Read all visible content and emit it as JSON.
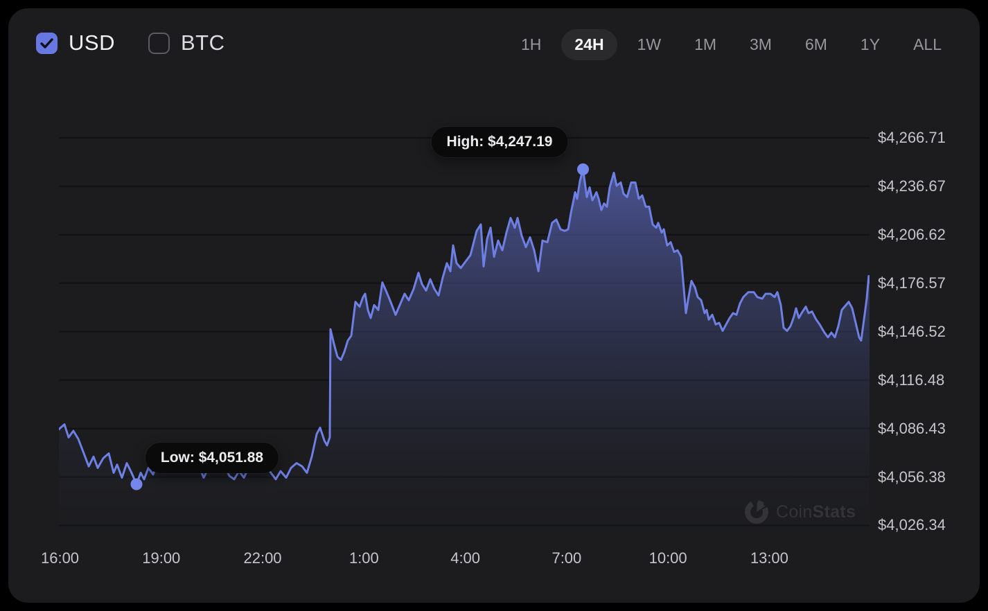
{
  "header": {
    "currency_toggles": [
      {
        "label": "USD",
        "checked": true
      },
      {
        "label": "BTC",
        "checked": false
      }
    ],
    "range_tabs": [
      {
        "label": "1H",
        "active": false
      },
      {
        "label": "24H",
        "active": true
      },
      {
        "label": "1W",
        "active": false
      },
      {
        "label": "1M",
        "active": false
      },
      {
        "label": "3M",
        "active": false
      },
      {
        "label": "6M",
        "active": false
      },
      {
        "label": "1Y",
        "active": false
      },
      {
        "label": "ALL",
        "active": false
      }
    ]
  },
  "watermark": {
    "brand_prefix": "Coin",
    "brand_suffix": "Stats"
  },
  "colors": {
    "accent": "#6878e2",
    "line": "#6e80e4",
    "card_bg": "#1c1c1e",
    "page_bg": "#000000",
    "tooltip_bg": "#0a0a0b"
  },
  "chart_data": {
    "type": "area",
    "title": "24H price chart (USD)",
    "legend": [],
    "grid": "horizontal",
    "x_axis": {
      "ticks": [
        {
          "label": "16:00",
          "t": 0.0013
        },
        {
          "label": "19:00",
          "t": 0.1263
        },
        {
          "label": "22:00",
          "t": 0.2513
        },
        {
          "label": "1:00",
          "t": 0.3764
        },
        {
          "label": "4:00",
          "t": 0.5014
        },
        {
          "label": "7:00",
          "t": 0.6264
        },
        {
          "label": "10:00",
          "t": 0.7514
        },
        {
          "label": "13:00",
          "t": 0.8764
        }
      ]
    },
    "y_axis": {
      "price_at_top": 4272.72,
      "price_at_bottom": 4017.1,
      "ticks": [
        {
          "label": "$4,266.71",
          "value": 4266.71
        },
        {
          "label": "$4,236.67",
          "value": 4236.67
        },
        {
          "label": "$4,206.62",
          "value": 4206.62
        },
        {
          "label": "$4,176.57",
          "value": 4176.57
        },
        {
          "label": "$4,146.52",
          "value": 4146.52
        },
        {
          "label": "$4,116.48",
          "value": 4116.48
        },
        {
          "label": "$4,086.43",
          "value": 4086.43
        },
        {
          "label": "$4,056.38",
          "value": 4056.38
        },
        {
          "label": "$4,026.34",
          "value": 4026.34
        }
      ]
    },
    "high": {
      "label": "High: $4,247.19",
      "value": 4247.19,
      "t": 0.6466
    },
    "low": {
      "label": "Low: $4,051.88",
      "value": 4051.88,
      "t": 0.0957
    },
    "points": [
      [
        0.0,
        4086
      ],
      [
        0.0068,
        4089
      ],
      [
        0.012,
        4081
      ],
      [
        0.0179,
        4085
      ],
      [
        0.0239,
        4080
      ],
      [
        0.0308,
        4071
      ],
      [
        0.0368,
        4063
      ],
      [
        0.0427,
        4069
      ],
      [
        0.0479,
        4062
      ],
      [
        0.0547,
        4068
      ],
      [
        0.0615,
        4071
      ],
      [
        0.0675,
        4059
      ],
      [
        0.0718,
        4064
      ],
      [
        0.0778,
        4056
      ],
      [
        0.0838,
        4065
      ],
      [
        0.0897,
        4059
      ],
      [
        0.0957,
        4051.88
      ],
      [
        0.1009,
        4059
      ],
      [
        0.1051,
        4055
      ],
      [
        0.1103,
        4062
      ],
      [
        0.1162,
        4058
      ],
      [
        0.1222,
        4066
      ],
      [
        0.1291,
        4070
      ],
      [
        0.135,
        4064
      ],
      [
        0.1402,
        4068
      ],
      [
        0.1453,
        4061
      ],
      [
        0.1504,
        4067
      ],
      [
        0.1564,
        4072
      ],
      [
        0.1624,
        4067
      ],
      [
        0.1675,
        4070
      ],
      [
        0.1735,
        4062
      ],
      [
        0.1786,
        4056
      ],
      [
        0.1846,
        4062
      ],
      [
        0.1906,
        4073
      ],
      [
        0.1974,
        4069
      ],
      [
        0.2034,
        4064
      ],
      [
        0.2103,
        4057
      ],
      [
        0.2162,
        4055
      ],
      [
        0.2222,
        4060
      ],
      [
        0.2282,
        4056
      ],
      [
        0.235,
        4063
      ],
      [
        0.2419,
        4066
      ],
      [
        0.2479,
        4062
      ],
      [
        0.2547,
        4064
      ],
      [
        0.2615,
        4059
      ],
      [
        0.2675,
        4055
      ],
      [
        0.2735,
        4060
      ],
      [
        0.2803,
        4056
      ],
      [
        0.2863,
        4062
      ],
      [
        0.2932,
        4065
      ],
      [
        0.3,
        4063
      ],
      [
        0.306,
        4059
      ],
      [
        0.312,
        4069
      ],
      [
        0.318,
        4083
      ],
      [
        0.3222,
        4087
      ],
      [
        0.3274,
        4079
      ],
      [
        0.3308,
        4076
      ],
      [
        0.3342,
        4081
      ],
      [
        0.335,
        4148
      ],
      [
        0.3393,
        4139
      ],
      [
        0.3436,
        4131
      ],
      [
        0.3479,
        4129
      ],
      [
        0.3521,
        4134
      ],
      [
        0.3564,
        4141
      ],
      [
        0.3607,
        4144
      ],
      [
        0.3658,
        4165
      ],
      [
        0.3709,
        4162
      ],
      [
        0.3752,
        4168
      ],
      [
        0.3778,
        4170
      ],
      [
        0.3812,
        4160
      ],
      [
        0.3846,
        4155
      ],
      [
        0.3889,
        4163
      ],
      [
        0.394,
        4160
      ],
      [
        0.3991,
        4177
      ],
      [
        0.4034,
        4172
      ],
      [
        0.4085,
        4166
      ],
      [
        0.4154,
        4157
      ],
      [
        0.4205,
        4163
      ],
      [
        0.4265,
        4170
      ],
      [
        0.4316,
        4166
      ],
      [
        0.4376,
        4173
      ],
      [
        0.4436,
        4183
      ],
      [
        0.4479,
        4176
      ],
      [
        0.453,
        4172
      ],
      [
        0.4581,
        4179
      ],
      [
        0.4632,
        4173
      ],
      [
        0.4684,
        4169
      ],
      [
        0.4735,
        4180
      ],
      [
        0.4786,
        4189
      ],
      [
        0.4829,
        4184
      ],
      [
        0.4863,
        4200
      ],
      [
        0.4906,
        4189
      ],
      [
        0.4957,
        4186
      ],
      [
        0.5017,
        4190
      ],
      [
        0.5077,
        4194
      ],
      [
        0.5154,
        4209
      ],
      [
        0.5205,
        4213
      ],
      [
        0.5239,
        4187
      ],
      [
        0.5282,
        4204
      ],
      [
        0.5325,
        4211
      ],
      [
        0.5368,
        4193
      ],
      [
        0.5419,
        4203
      ],
      [
        0.547,
        4197
      ],
      [
        0.5521,
        4208
      ],
      [
        0.5573,
        4217
      ],
      [
        0.5624,
        4211
      ],
      [
        0.5658,
        4217
      ],
      [
        0.5709,
        4206
      ],
      [
        0.5761,
        4199
      ],
      [
        0.5812,
        4205
      ],
      [
        0.5863,
        4197
      ],
      [
        0.5915,
        4184
      ],
      [
        0.5966,
        4203
      ],
      [
        0.6026,
        4202
      ],
      [
        0.6085,
        4214
      ],
      [
        0.6137,
        4216
      ],
      [
        0.6188,
        4210
      ],
      [
        0.6239,
        4209
      ],
      [
        0.6282,
        4210
      ],
      [
        0.6316,
        4220
      ],
      [
        0.6368,
        4233
      ],
      [
        0.6393,
        4229
      ],
      [
        0.6427,
        4240
      ],
      [
        0.6466,
        4247.19
      ],
      [
        0.6513,
        4230
      ],
      [
        0.6547,
        4236
      ],
      [
        0.6581,
        4228
      ],
      [
        0.6632,
        4233
      ],
      [
        0.6658,
        4229
      ],
      [
        0.6692,
        4222
      ],
      [
        0.6726,
        4226
      ],
      [
        0.6761,
        4224
      ],
      [
        0.6795,
        4236
      ],
      [
        0.6846,
        4245
      ],
      [
        0.688,
        4237
      ],
      [
        0.6932,
        4239
      ],
      [
        0.6966,
        4232
      ],
      [
        0.7009,
        4230
      ],
      [
        0.706,
        4239
      ],
      [
        0.7111,
        4239
      ],
      [
        0.7154,
        4229
      ],
      [
        0.7197,
        4231
      ],
      [
        0.7239,
        4224
      ],
      [
        0.7282,
        4224
      ],
      [
        0.7325,
        4213
      ],
      [
        0.7368,
        4211
      ],
      [
        0.7393,
        4214
      ],
      [
        0.7436,
        4208
      ],
      [
        0.7462,
        4210
      ],
      [
        0.7504,
        4200
      ],
      [
        0.7547,
        4202
      ],
      [
        0.759,
        4196
      ],
      [
        0.7632,
        4197
      ],
      [
        0.7675,
        4193
      ],
      [
        0.7735,
        4158
      ],
      [
        0.7761,
        4166
      ],
      [
        0.7803,
        4178
      ],
      [
        0.7846,
        4174
      ],
      [
        0.788,
        4168
      ],
      [
        0.7923,
        4166
      ],
      [
        0.7966,
        4158
      ],
      [
        0.7991,
        4160
      ],
      [
        0.8017,
        4154
      ],
      [
        0.806,
        4157
      ],
      [
        0.8103,
        4151
      ],
      [
        0.8145,
        4152
      ],
      [
        0.8188,
        4147
      ],
      [
        0.8231,
        4151
      ],
      [
        0.8274,
        4155
      ],
      [
        0.8316,
        4158
      ],
      [
        0.8359,
        4157
      ],
      [
        0.8402,
        4164
      ],
      [
        0.8444,
        4168
      ],
      [
        0.8504,
        4171
      ],
      [
        0.8573,
        4171
      ],
      [
        0.8615,
        4168
      ],
      [
        0.8675,
        4167
      ],
      [
        0.8718,
        4170
      ],
      [
        0.8778,
        4170
      ],
      [
        0.8829,
        4168
      ],
      [
        0.8863,
        4171
      ],
      [
        0.8906,
        4163
      ],
      [
        0.894,
        4149
      ],
      [
        0.8983,
        4147
      ],
      [
        0.9026,
        4150
      ],
      [
        0.9068,
        4156
      ],
      [
        0.9094,
        4161
      ],
      [
        0.9128,
        4155
      ],
      [
        0.9162,
        4158
      ],
      [
        0.9214,
        4162
      ],
      [
        0.9248,
        4158
      ],
      [
        0.9291,
        4159
      ],
      [
        0.9342,
        4154
      ],
      [
        0.9385,
        4151
      ],
      [
        0.9444,
        4146
      ],
      [
        0.9487,
        4143
      ],
      [
        0.953,
        4146
      ],
      [
        0.9573,
        4143
      ],
      [
        0.9615,
        4150
      ],
      [
        0.9658,
        4160
      ],
      [
        0.9709,
        4163
      ],
      [
        0.9744,
        4165
      ],
      [
        0.9786,
        4161
      ],
      [
        0.9829,
        4152
      ],
      [
        0.9872,
        4143
      ],
      [
        0.9897,
        4141
      ],
      [
        0.9932,
        4154
      ],
      [
        0.9966,
        4167
      ],
      [
        0.9991,
        4181
      ],
      [
        1.0,
        4177
      ]
    ]
  }
}
